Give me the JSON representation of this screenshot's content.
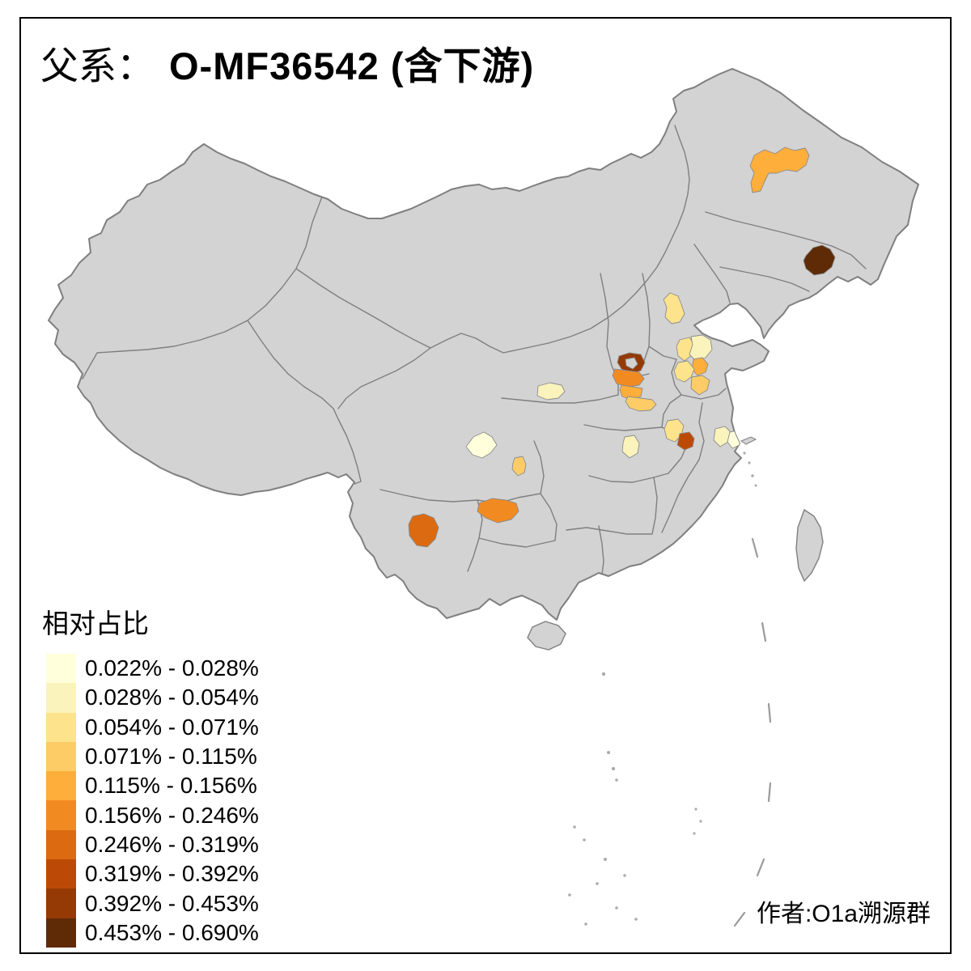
{
  "title": {
    "prefix": "父系：",
    "main": "O-MF36542 (含下游)"
  },
  "legend": {
    "title": "相对占比",
    "items": [
      {
        "range": "0.022% - 0.028%",
        "color": "#FFFFDC"
      },
      {
        "range": "0.028% - 0.054%",
        "color": "#FBF3BC"
      },
      {
        "range": "0.054% - 0.071%",
        "color": "#FCE38C"
      },
      {
        "range": "0.071% - 0.115%",
        "color": "#FDCC66"
      },
      {
        "range": "0.115% - 0.156%",
        "color": "#FDAE3B"
      },
      {
        "range": "0.156% - 0.246%",
        "color": "#F28A22"
      },
      {
        "range": "0.246% - 0.319%",
        "color": "#DC6A11"
      },
      {
        "range": "0.319% - 0.392%",
        "color": "#BC4A06"
      },
      {
        "range": "0.392% - 0.453%",
        "color": "#953A04"
      },
      {
        "range": "0.453% - 0.690%",
        "color": "#5F2B07"
      }
    ]
  },
  "attribution": "作者:O1a溯源群",
  "map": {
    "land_fill": "#D3D3D3",
    "border_color": "#7F7F7F",
    "sea_color": "#FFFFFF",
    "frame_color": "#000000",
    "regions": [
      {
        "id": "heilongjiang-west",
        "bin": 5,
        "range": "0.115% - 0.156%",
        "color": "#FDAE3B"
      },
      {
        "id": "jilin-east",
        "bin": 10,
        "range": "0.453% - 0.690%",
        "color": "#5F2B07"
      },
      {
        "id": "tianjin",
        "bin": 3,
        "range": "0.054% - 0.071%",
        "color": "#FCE38C"
      },
      {
        "id": "shandong-northwest",
        "bin": 3,
        "range": "0.054% - 0.071%",
        "color": "#FCE38C"
      },
      {
        "id": "shandong-north",
        "bin": 2,
        "range": "0.028% - 0.054%",
        "color": "#FBF3BC"
      },
      {
        "id": "shandong-central",
        "bin": 5,
        "range": "0.115% - 0.156%",
        "color": "#FDAE3B"
      },
      {
        "id": "shandong-southwest",
        "bin": 3,
        "range": "0.054% - 0.071%",
        "color": "#FCE38C"
      },
      {
        "id": "shandong-south",
        "bin": 4,
        "range": "0.071% - 0.115%",
        "color": "#FDCC66"
      },
      {
        "id": "henan-anyang",
        "bin": 9,
        "range": "0.392% - 0.453%",
        "color": "#953A04"
      },
      {
        "id": "henan-xinxiang",
        "bin": 6,
        "range": "0.156% - 0.246%",
        "color": "#F28A22"
      },
      {
        "id": "henan-zhengzhou",
        "bin": 5,
        "range": "0.115% - 0.156%",
        "color": "#FDAE3B"
      },
      {
        "id": "henan-south",
        "bin": 4,
        "range": "0.071% - 0.115%",
        "color": "#FDCC66"
      },
      {
        "id": "gansu-east",
        "bin": 2,
        "range": "0.028% - 0.054%",
        "color": "#FBF3BC"
      },
      {
        "id": "sichuan-chengdu",
        "bin": 1,
        "range": "0.022% - 0.028%",
        "color": "#FFFFDC"
      },
      {
        "id": "chongqing-west",
        "bin": 4,
        "range": "0.071% - 0.115%",
        "color": "#FDCC66"
      },
      {
        "id": "hubei-north",
        "bin": 2,
        "range": "0.028% - 0.054%",
        "color": "#FBF3BC"
      },
      {
        "id": "anhui-northwest",
        "bin": 3,
        "range": "0.054% - 0.071%",
        "color": "#FCE38C"
      },
      {
        "id": "anhui-hefei",
        "bin": 8,
        "range": "0.319% - 0.392%",
        "color": "#BC4A06"
      },
      {
        "id": "jiangsu-south",
        "bin": 2,
        "range": "0.028% - 0.054%",
        "color": "#FBF3BC"
      },
      {
        "id": "shanghai-suzhou",
        "bin": 1,
        "range": "0.022% - 0.028%",
        "color": "#FFFFDC"
      },
      {
        "id": "guizhou-central",
        "bin": 6,
        "range": "0.156% - 0.246%",
        "color": "#F28A22"
      },
      {
        "id": "yunnan-west",
        "bin": 7,
        "range": "0.246% - 0.319%",
        "color": "#DC6A11"
      }
    ]
  }
}
